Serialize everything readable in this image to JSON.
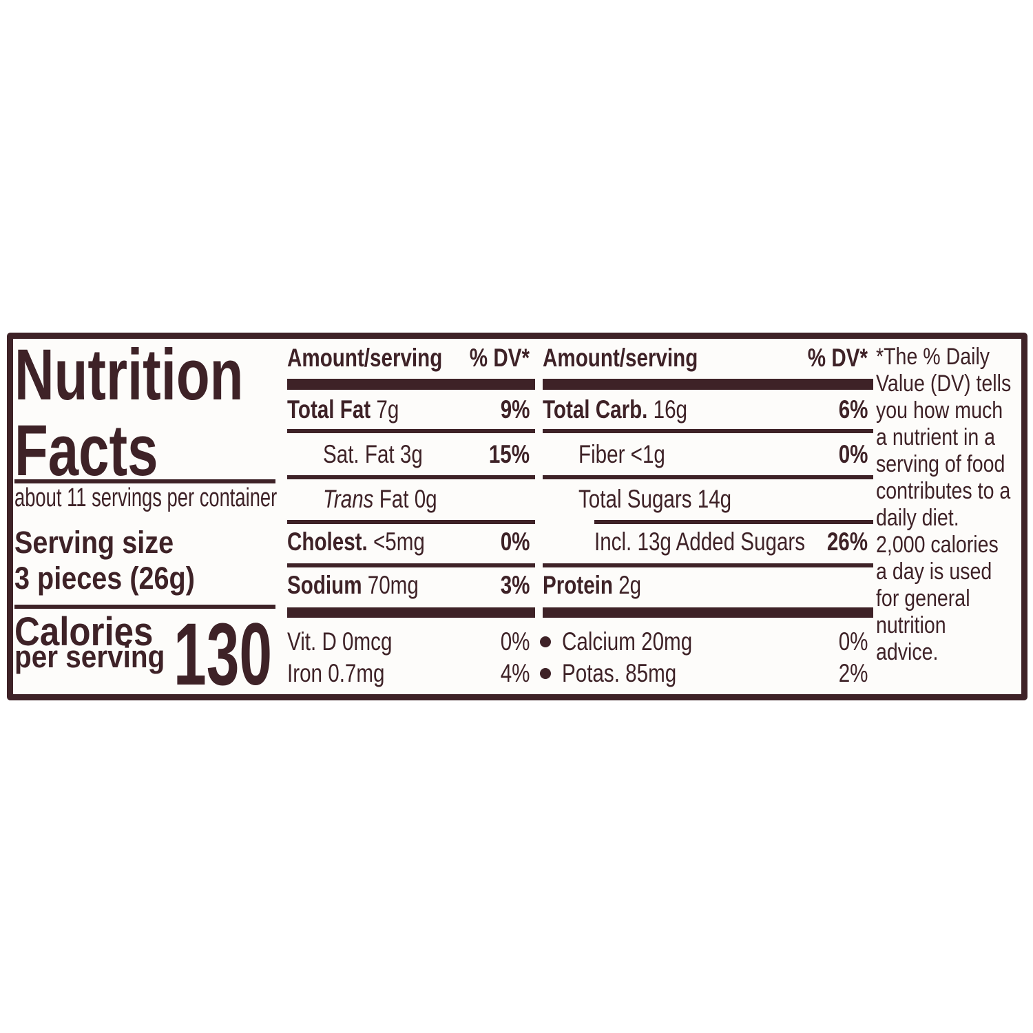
{
  "nutrition_label": {
    "ink_color": "#3E2227",
    "paper_color": "#FDFCFA",
    "title": {
      "line1": "Nutrition",
      "line2": "Facts"
    },
    "servings_per_container": "about 11 servings per container",
    "serving_size": {
      "label": "Serving size",
      "value": "3 pieces (26g)"
    },
    "calories": {
      "label_line1": "Calories",
      "label_line2": "per serving",
      "value": "130"
    },
    "column_headers": {
      "amount": "Amount/serving",
      "dv": "% DV*"
    },
    "nutrients_left": {
      "rows": [
        {
          "bold": "Total Fat",
          "rest": " 7g",
          "dv": "9%"
        },
        {
          "rest": "Sat. Fat 3g",
          "dv": "15%"
        },
        {
          "italic": "Trans",
          "rest": " Fat 0g"
        },
        {
          "bold": "Cholest.",
          "rest": " <5mg",
          "dv": "0%"
        },
        {
          "bold": "Sodium",
          "rest": " 70mg",
          "dv": "3%"
        },
        {
          "rest": "Vit. D 0mcg",
          "dv": "0%"
        },
        {
          "rest": "Iron 0.7mg",
          "dv": "4%"
        }
      ]
    },
    "nutrients_right": {
      "rows": [
        {
          "bold": "Total Carb.",
          "rest": " 16g",
          "dv": "6%"
        },
        {
          "rest": "Fiber <1g",
          "dv": "0%"
        },
        {
          "rest": "Total Sugars 14g"
        },
        {
          "rest": "Incl. 13g Added Sugars",
          "dv": "26%"
        },
        {
          "bold": "Protein",
          "rest": " 2g"
        },
        {
          "rest": "Calcium 20mg",
          "dv": "0%"
        },
        {
          "rest": "Potas. 85mg",
          "dv": "2%"
        }
      ]
    },
    "footnote_lines": [
      "*The % Daily",
      "Value (DV) tells",
      "you how much",
      "a nutrient in a",
      "serving of food",
      "contributes to a",
      "daily diet.",
      "2,000 calories",
      "a day is used",
      "for general",
      "nutrition",
      "advice."
    ]
  }
}
